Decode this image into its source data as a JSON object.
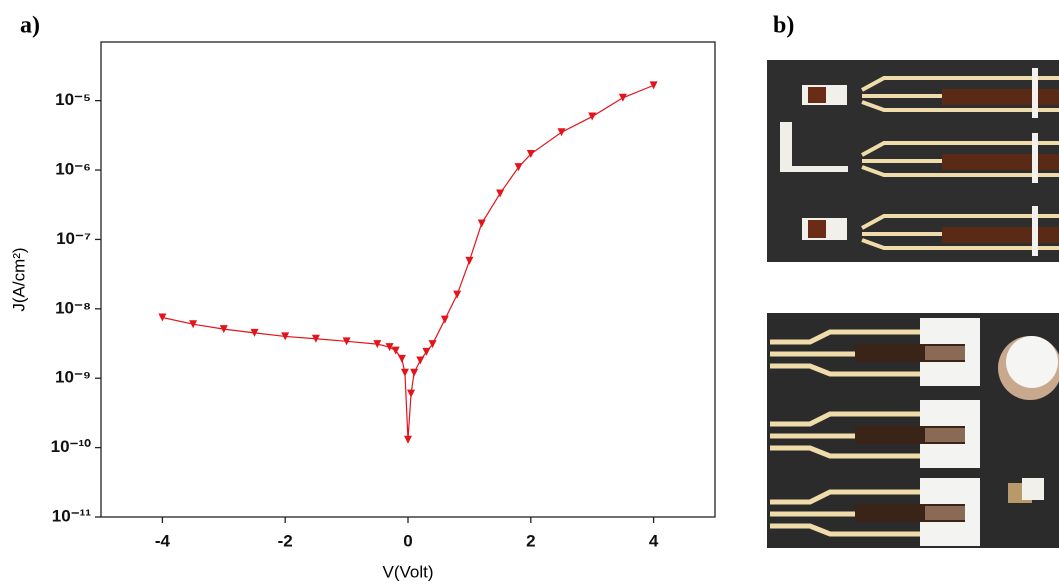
{
  "panel_labels": [
    "a)",
    "b)"
  ],
  "chart_data": {
    "type": "line",
    "x_label": "V(Volt)",
    "y_label": "J(A/cm²)",
    "yscale": "log",
    "color": "#e3141b",
    "marker": "triangle-down",
    "grid": false,
    "xlim": [
      -5,
      5
    ],
    "xticks": [
      -4,
      -2,
      0,
      2,
      4
    ],
    "ylim": [
      1e-11,
      7e-05
    ],
    "yticks": [
      {
        "value": 1e-11,
        "label": "10⁻¹¹"
      },
      {
        "value": 1e-10,
        "label": "10⁻¹⁰"
      },
      {
        "value": 1e-09,
        "label": "10⁻⁹"
      },
      {
        "value": 1e-08,
        "label": "10⁻⁸"
      },
      {
        "value": 1e-07,
        "label": "10⁻⁷"
      },
      {
        "value": 1e-06,
        "label": "10⁻⁶"
      },
      {
        "value": 1e-05,
        "label": "10⁻⁵"
      }
    ],
    "x": [
      -4,
      -3.5,
      -3,
      -2.5,
      -2,
      -1.5,
      -1,
      -0.5,
      -0.3,
      -0.2,
      -0.1,
      -0.05,
      0,
      0.05,
      0.1,
      0.2,
      0.3,
      0.4,
      0.6,
      0.8,
      1.0,
      1.2,
      1.5,
      1.8,
      2.0,
      2.5,
      3.0,
      3.5,
      4.0
    ],
    "values": [
      7.5e-09,
      6e-09,
      5.1e-09,
      4.5e-09,
      4e-09,
      3.7e-09,
      3.4e-09,
      3.1e-09,
      2.8e-09,
      2.5e-09,
      1.9e-09,
      1.2e-09,
      1.3e-10,
      6e-10,
      1.2e-09,
      1.8e-09,
      2.4e-09,
      3.1e-09,
      7e-09,
      1.6e-08,
      4.9e-08,
      1.7e-07,
      4.6e-07,
      1.1e-06,
      1.7e-06,
      3.5e-06,
      5.9e-06,
      1.1e-05,
      1.66e-05
    ]
  }
}
